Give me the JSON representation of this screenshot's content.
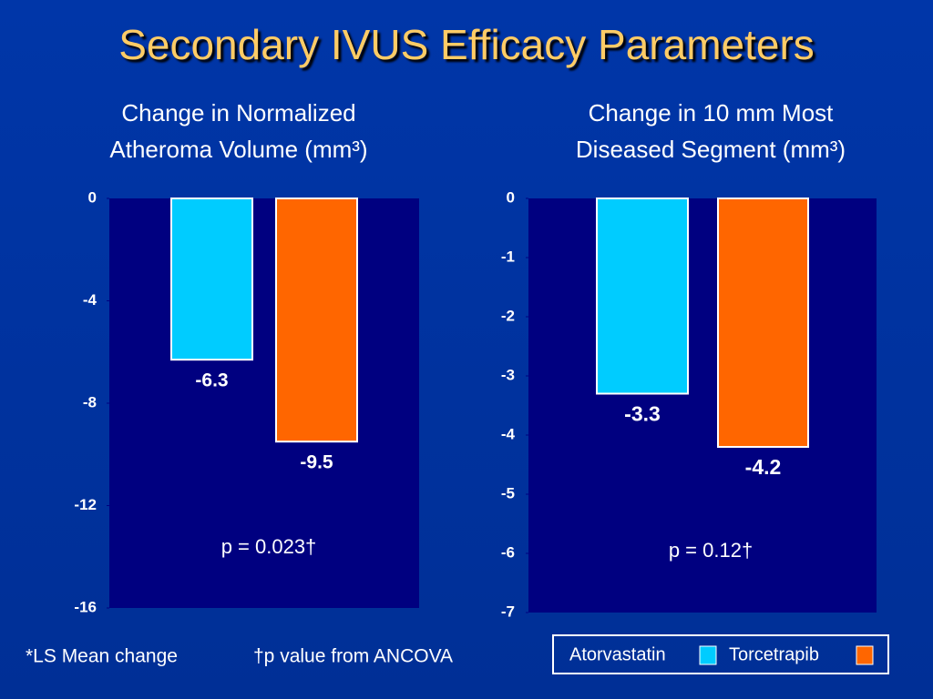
{
  "title": "Secondary IVUS Efficacy Parameters",
  "footnotes": [
    "*LS Mean change",
    "†p value from ANCOVA"
  ],
  "chart_data": [
    {
      "type": "bar",
      "title": "Change in Normalized Atheroma Volume (mm³)",
      "categories": [
        null
      ],
      "series": [
        {
          "color": "#00ccff",
          "values": [
            -6.3
          ]
        },
        {
          "color": "#ff6600",
          "values": [
            -9.5
          ]
        }
      ],
      "ylim": [
        -16,
        0
      ],
      "yticks": [
        0,
        -4,
        -8,
        -12,
        -16
      ],
      "annotation": "p = 0.023†"
    },
    {
      "type": "bar",
      "title": "Change in 10 mm Most Diseased Segment (mm³)",
      "categories": [
        null
      ],
      "series": [
        {
          "name": "Atorvastatin",
          "color": "#00ccff",
          "values": [
            -3.3
          ]
        },
        {
          "name": "Torcetrapib",
          "color": "#ff6600",
          "values": [
            -4.2
          ]
        }
      ],
      "ylim": [
        -7,
        0
      ],
      "yticks": [
        0,
        -1,
        -2,
        -3,
        -4,
        -5,
        -6,
        -7
      ],
      "annotation": "p = 0.12†"
    }
  ]
}
